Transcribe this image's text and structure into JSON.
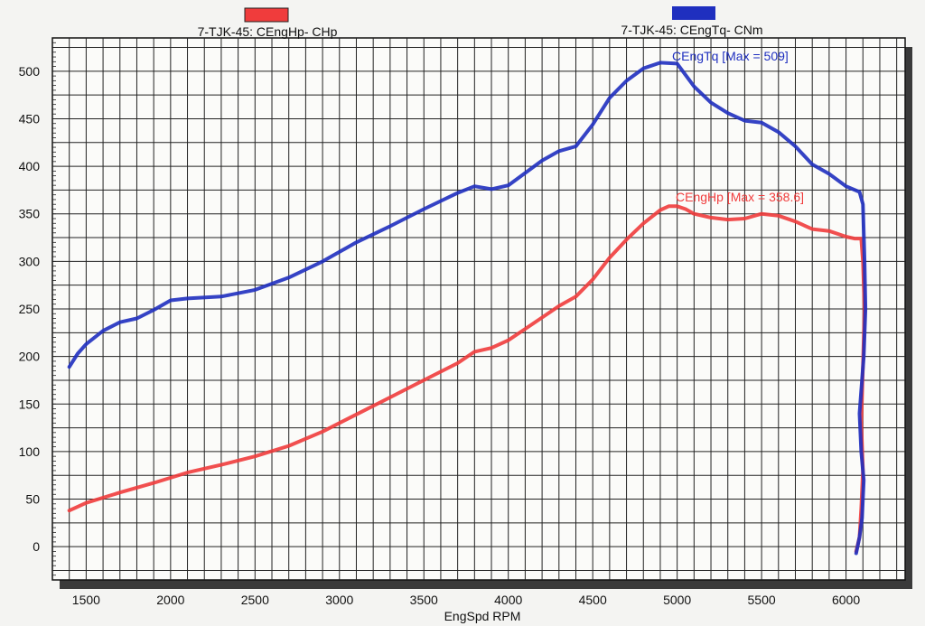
{
  "chart_data": {
    "type": "line",
    "xlabel": "EngSpd  RPM",
    "ylabel": "",
    "xlim": [
      1300,
      6350
    ],
    "ylim": [
      -35,
      535
    ],
    "xticks": [
      1500,
      2000,
      2500,
      3000,
      3500,
      4000,
      4500,
      5000,
      5500,
      6000
    ],
    "yticks": [
      0,
      50,
      100,
      150,
      200,
      250,
      300,
      350,
      400,
      450,
      500
    ],
    "grid": true,
    "legend": "top",
    "series": [
      {
        "name": "7-TJK-45: CEngHp-  CHp",
        "color": "#f03c3c",
        "annotation": "CEngHp [Max = 358.6]",
        "points": [
          [
            1400,
            38
          ],
          [
            1500,
            46
          ],
          [
            1700,
            57
          ],
          [
            1900,
            67
          ],
          [
            2100,
            78
          ],
          [
            2300,
            86
          ],
          [
            2500,
            95
          ],
          [
            2700,
            106
          ],
          [
            2900,
            121
          ],
          [
            3100,
            139
          ],
          [
            3300,
            157
          ],
          [
            3500,
            175
          ],
          [
            3700,
            193
          ],
          [
            3800,
            205
          ],
          [
            3900,
            209
          ],
          [
            4000,
            217
          ],
          [
            4100,
            229
          ],
          [
            4200,
            241
          ],
          [
            4300,
            253
          ],
          [
            4400,
            263
          ],
          [
            4500,
            281
          ],
          [
            4600,
            304
          ],
          [
            4700,
            323
          ],
          [
            4800,
            340
          ],
          [
            4900,
            354
          ],
          [
            4950,
            358
          ],
          [
            5000,
            358
          ],
          [
            5050,
            355
          ],
          [
            5100,
            350
          ],
          [
            5200,
            346
          ],
          [
            5300,
            344
          ],
          [
            5400,
            345
          ],
          [
            5500,
            350
          ],
          [
            5600,
            348
          ],
          [
            5700,
            342
          ],
          [
            5800,
            334
          ],
          [
            5900,
            332
          ],
          [
            6000,
            326
          ],
          [
            6050,
            324
          ],
          [
            6090,
            324
          ],
          [
            6100,
            300
          ],
          [
            6110,
            250
          ],
          [
            6100,
            190
          ],
          [
            6090,
            130
          ],
          [
            6100,
            80
          ],
          [
            6090,
            40
          ],
          [
            6080,
            10
          ],
          [
            6060,
            -5
          ]
        ]
      },
      {
        "name": "7-TJK-45: CEngTq-  CNm",
        "color": "#1f2fbf",
        "annotation": "CEngTq [Max = 509]",
        "points": [
          [
            1400,
            189
          ],
          [
            1450,
            203
          ],
          [
            1500,
            213
          ],
          [
            1600,
            227
          ],
          [
            1700,
            236
          ],
          [
            1800,
            240
          ],
          [
            1900,
            249
          ],
          [
            2000,
            259
          ],
          [
            2100,
            261
          ],
          [
            2300,
            263
          ],
          [
            2500,
            270
          ],
          [
            2700,
            283
          ],
          [
            2900,
            300
          ],
          [
            3100,
            320
          ],
          [
            3300,
            337
          ],
          [
            3500,
            355
          ],
          [
            3700,
            372
          ],
          [
            3800,
            379
          ],
          [
            3900,
            376
          ],
          [
            4000,
            380
          ],
          [
            4100,
            393
          ],
          [
            4200,
            406
          ],
          [
            4300,
            416
          ],
          [
            4400,
            421
          ],
          [
            4500,
            444
          ],
          [
            4600,
            472
          ],
          [
            4700,
            490
          ],
          [
            4800,
            503
          ],
          [
            4900,
            509
          ],
          [
            5000,
            508
          ],
          [
            5100,
            484
          ],
          [
            5200,
            467
          ],
          [
            5300,
            456
          ],
          [
            5400,
            448
          ],
          [
            5500,
            446
          ],
          [
            5600,
            436
          ],
          [
            5700,
            421
          ],
          [
            5800,
            402
          ],
          [
            5900,
            392
          ],
          [
            6000,
            379
          ],
          [
            6080,
            373
          ],
          [
            6100,
            360
          ],
          [
            6110,
            300
          ],
          [
            6115,
            250
          ],
          [
            6105,
            200
          ],
          [
            6080,
            140
          ],
          [
            6090,
            100
          ],
          [
            6105,
            70
          ],
          [
            6095,
            30
          ],
          [
            6080,
            10
          ],
          [
            6060,
            -7
          ]
        ]
      }
    ]
  }
}
